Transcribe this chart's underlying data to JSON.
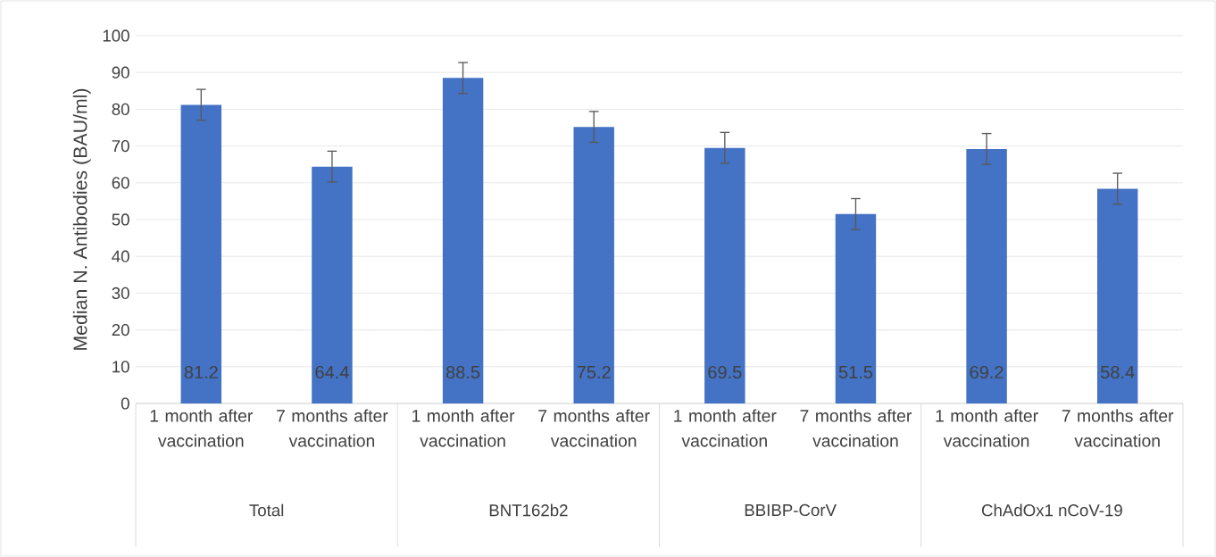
{
  "chart_data": {
    "type": "bar",
    "ylabel": "Median N. Antibodies (BAU/ml)",
    "categories": [
      "1 month after vaccination",
      "7 months after vaccination",
      "1 month after vaccination",
      "7 months after vaccination",
      "1 month after vaccination",
      "7 months after vaccination",
      "1 month after vaccination",
      "7 months after vaccination"
    ],
    "values": [
      81.2,
      64.4,
      88.5,
      75.2,
      69.5,
      51.5,
      69.2,
      58.4
    ],
    "errors": [
      4.2,
      4.2,
      4.2,
      4.2,
      4.2,
      4.2,
      4.2,
      4.2
    ],
    "color": "#4472c4",
    "ylim": [
      0,
      100
    ],
    "yticks": [
      0,
      10,
      20,
      30,
      40,
      50,
      60,
      70,
      80,
      90,
      100
    ],
    "grid": "y",
    "data_labels": true,
    "annotations": [
      "Total",
      "BNT162b2",
      "BBIBP-CorV",
      "ChAdOx1 nCoV-19"
    ]
  }
}
